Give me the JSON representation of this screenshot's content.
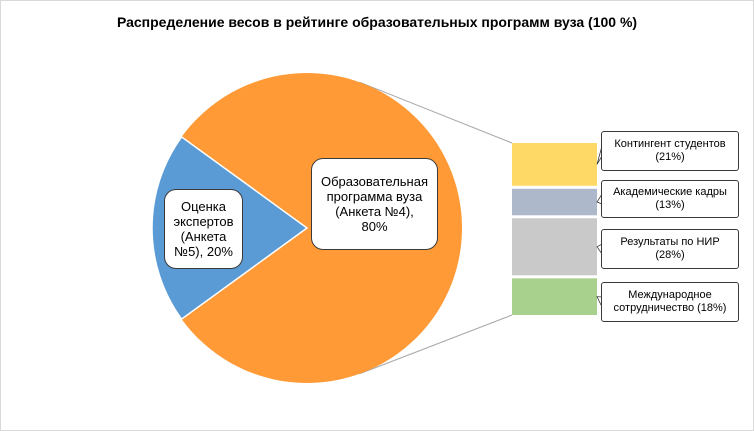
{
  "chart_data": {
    "type": "bar-of-pie",
    "title": "Распределение весов в рейтинге образовательных программ вуза (100 %)",
    "pie": {
      "slices": [
        {
          "label_lines": [
            "Образовательная",
            "программа вуза",
            "(Анкета №4),",
            "80%"
          ],
          "value": 80,
          "color": "#ff9a36"
        },
        {
          "label_lines": [
            "Оценка",
            "экспертов",
            "(Анкета",
            "№5), 20%"
          ],
          "value": 20,
          "color": "#5b9bd5"
        }
      ]
    },
    "breakdown": {
      "of": "Образовательная программа вуза (Анкета №4)",
      "items": [
        {
          "label": "Контингент студентов",
          "value_label": "(21%)",
          "value": 21,
          "color": "#ffd966"
        },
        {
          "label": "Академические кадры",
          "value_label": "(13%)",
          "value": 13,
          "color": "#adb9ca"
        },
        {
          "label": "Результаты по НИР",
          "value_label": "(28%)",
          "value": 28,
          "color": "#c9c9c9"
        },
        {
          "label": "Международное",
          "label2": "сотрудничество (18%)",
          "value": 18,
          "color": "#a9d18e"
        }
      ]
    }
  }
}
